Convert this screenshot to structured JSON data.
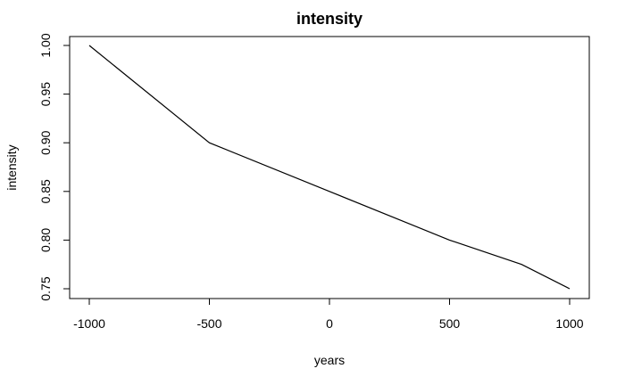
{
  "chart_data": {
    "type": "line",
    "title": "intensity",
    "xlabel": "years",
    "ylabel": "intensity",
    "xlim": [
      -1000,
      1000
    ],
    "ylim": [
      0.75,
      1.0
    ],
    "x_ticks": [
      -1000,
      -500,
      0,
      500,
      1000
    ],
    "y_ticks": [
      "0.75",
      "0.80",
      "0.85",
      "0.90",
      "0.95",
      "1.00"
    ],
    "grid": false,
    "series": [
      {
        "x": [
          -1000,
          -500,
          0,
          500,
          800,
          1000
        ],
        "y": [
          1.0,
          0.9,
          0.85,
          0.8,
          0.775,
          0.75
        ]
      }
    ],
    "line_color": "#000000"
  }
}
